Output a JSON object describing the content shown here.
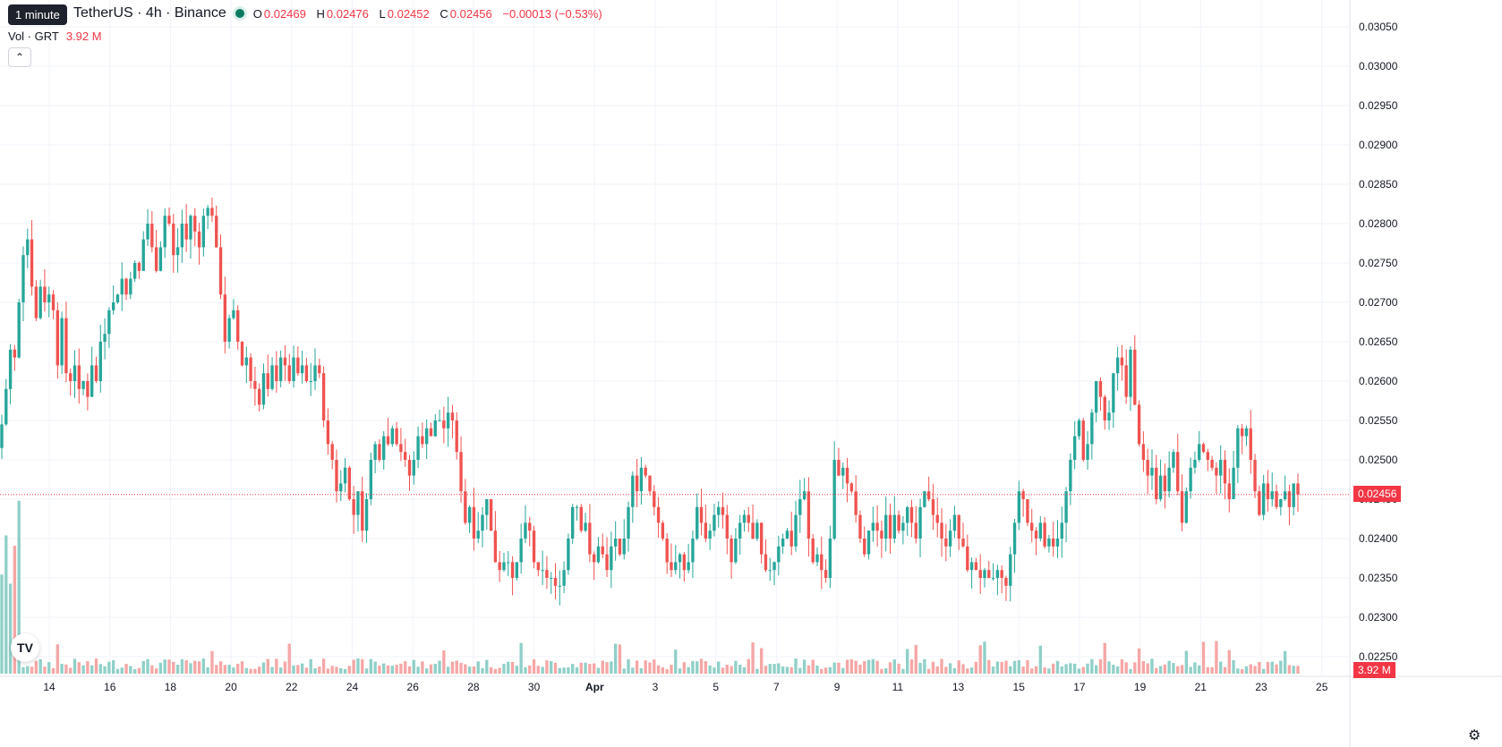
{
  "header": {
    "symbol": "TetherUS · 4h · Binance",
    "open_label": "O",
    "open": "0.02469",
    "high_label": "H",
    "high": "0.02476",
    "low_label": "L",
    "low": "0.02452",
    "close_label": "C",
    "close": "0.02456",
    "change": "−0.00013 (−0.53%)"
  },
  "tooltip": "1 minute",
  "volume": {
    "label": "Vol · GRT",
    "value": "3.92 M"
  },
  "price_tag": "0.02456",
  "volume_tag": "3.92 M",
  "colors": {
    "up": "#26a69a",
    "down": "#ef5350",
    "up_vol": "#8fd0c8",
    "down_vol": "#f5a7a6",
    "last_line": "#f23645"
  },
  "chart_data": {
    "type": "candlestick",
    "ylim": [
      0.0225,
      0.0306
    ],
    "y_ticks": [
      "0.03050",
      "0.03000",
      "0.02950",
      "0.02900",
      "0.02850",
      "0.02800",
      "0.02750",
      "0.02700",
      "0.02650",
      "0.02600",
      "0.02550",
      "0.02500",
      "0.02450",
      "0.02400",
      "0.02350",
      "0.02300",
      "0.02250"
    ],
    "x_ticks": [
      "14",
      "16",
      "18",
      "20",
      "22",
      "24",
      "26",
      "28",
      "30",
      "Apr",
      "3",
      "5",
      "7",
      "9",
      "11",
      "13",
      "15",
      "17",
      "19",
      "21",
      "23",
      "25"
    ],
    "last_price": 0.02456,
    "closes": [
      0.02545,
      0.0259,
      0.0264,
      0.0263,
      0.027,
      0.0276,
      0.0278,
      0.0272,
      0.0268,
      0.0272,
      0.027,
      0.0271,
      0.0269,
      0.0262,
      0.0268,
      0.0261,
      0.026,
      0.0262,
      0.0259,
      0.026,
      0.0258,
      0.0262,
      0.026,
      0.0265,
      0.0266,
      0.0269,
      0.027,
      0.0271,
      0.0273,
      0.0271,
      0.0273,
      0.0275,
      0.0274,
      0.0278,
      0.028,
      0.0277,
      0.0274,
      0.0277,
      0.0281,
      0.028,
      0.0276,
      0.0277,
      0.028,
      0.0278,
      0.0281,
      0.0279,
      0.0277,
      0.0281,
      0.0282,
      0.0281,
      0.0277,
      0.0271,
      0.0265,
      0.0268,
      0.0269,
      0.0265,
      0.0262,
      0.0263,
      0.026,
      0.0259,
      0.0257,
      0.0261,
      0.0259,
      0.0262,
      0.026,
      0.0263,
      0.0262,
      0.026,
      0.0263,
      0.0261,
      0.0262,
      0.026,
      0.026,
      0.0262,
      0.0261,
      0.0255,
      0.0252,
      0.025,
      0.0246,
      0.0247,
      0.0249,
      0.0245,
      0.0243,
      0.0246,
      0.0241,
      0.0245,
      0.025,
      0.0252,
      0.025,
      0.0253,
      0.0252,
      0.0254,
      0.0252,
      0.0251,
      0.025,
      0.0248,
      0.025,
      0.0253,
      0.0252,
      0.0254,
      0.0253,
      0.0255,
      0.0255,
      0.0254,
      0.0256,
      0.0255,
      0.0251,
      0.0246,
      0.0242,
      0.0244,
      0.024,
      0.0241,
      0.0243,
      0.0245,
      0.0241,
      0.0237,
      0.0236,
      0.0237,
      0.0237,
      0.0235,
      0.0237,
      0.024,
      0.0242,
      0.0241,
      0.0237,
      0.0236,
      0.0236,
      0.0235,
      0.0235,
      0.0234,
      0.0234,
      0.0236,
      0.024,
      0.0244,
      0.0244,
      0.0241,
      0.0242,
      0.0238,
      0.0237,
      0.0239,
      0.0238,
      0.0236,
      0.0239,
      0.024,
      0.0238,
      0.024,
      0.0244,
      0.0248,
      0.0246,
      0.0249,
      0.0248,
      0.0246,
      0.0244,
      0.0242,
      0.024,
      0.0237,
      0.0236,
      0.0237,
      0.0238,
      0.0236,
      0.0237,
      0.024,
      0.0244,
      0.0242,
      0.024,
      0.0241,
      0.0243,
      0.0244,
      0.0243,
      0.024,
      0.0237,
      0.024,
      0.0242,
      0.0243,
      0.0242,
      0.024,
      0.0242,
      0.0238,
      0.0236,
      0.0236,
      0.0237,
      0.0239,
      0.024,
      0.0241,
      0.0239,
      0.0243,
      0.0245,
      0.0246,
      0.024,
      0.0237,
      0.0238,
      0.0236,
      0.0235,
      0.024,
      0.025,
      0.0248,
      0.0249,
      0.0247,
      0.0246,
      0.0243,
      0.024,
      0.0238,
      0.0241,
      0.0242,
      0.0241,
      0.024,
      0.0243,
      0.024,
      0.0243,
      0.0241,
      0.0242,
      0.0244,
      0.0242,
      0.024,
      0.0244,
      0.0246,
      0.0245,
      0.0243,
      0.0242,
      0.024,
      0.0239,
      0.0241,
      0.0243,
      0.024,
      0.0239,
      0.0236,
      0.0237,
      0.0236,
      0.0235,
      0.0236,
      0.0235,
      0.0235,
      0.0236,
      0.0235,
      0.0234,
      0.0238,
      0.0242,
      0.0246,
      0.0245,
      0.0242,
      0.0241,
      0.024,
      0.0242,
      0.0239,
      0.024,
      0.0239,
      0.024,
      0.0242,
      0.0246,
      0.025,
      0.0253,
      0.0255,
      0.025,
      0.0252,
      0.0256,
      0.026,
      0.0258,
      0.0255,
      0.0256,
      0.0261,
      0.0263,
      0.0262,
      0.0258,
      0.0264,
      0.0257,
      0.0252,
      0.025,
      0.0248,
      0.0249,
      0.0245,
      0.0248,
      0.0246,
      0.0249,
      0.0251,
      0.0246,
      0.0242,
      0.0246,
      0.0249,
      0.025,
      0.0252,
      0.0251,
      0.025,
      0.0249,
      0.0248,
      0.025,
      0.0247,
      0.0245,
      0.0249,
      0.0254,
      0.0253,
      0.0254,
      0.025,
      0.0246,
      0.0243,
      0.0247,
      0.0245,
      0.0246,
      0.0244,
      0.0245,
      0.0246,
      0.0244,
      0.0247,
      0.02456
    ]
  }
}
